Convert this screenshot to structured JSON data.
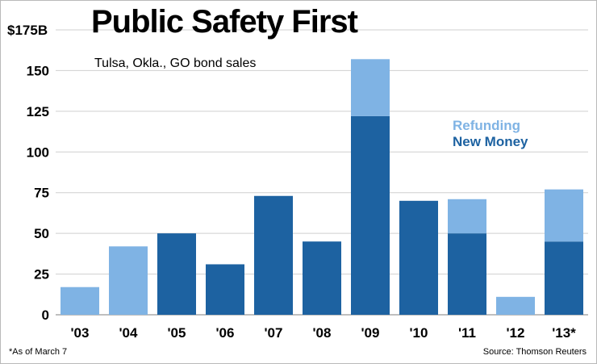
{
  "chart_data": {
    "type": "bar",
    "stacked": true,
    "title": "Public Safety First",
    "subtitle": "Tulsa, Okla., GO bond sales",
    "y_unit_label": "$175B",
    "categories": [
      "'03",
      "'04",
      "'05",
      "'06",
      "'07",
      "'08",
      "'09",
      "'10",
      "'11",
      "'12",
      "'13*"
    ],
    "series": [
      {
        "name": "New Money",
        "color": "#1d62a1",
        "values": [
          0,
          0,
          50,
          31,
          73,
          45,
          122,
          70,
          50,
          0,
          45
        ]
      },
      {
        "name": "Refunding",
        "color": "#7fb3e4",
        "values": [
          17,
          42,
          0,
          0,
          0,
          0,
          35,
          0,
          21,
          11,
          32
        ]
      }
    ],
    "yticks": [
      0,
      25,
      50,
      75,
      100,
      125,
      150
    ],
    "ylim": [
      0,
      175
    ],
    "grid": true,
    "legend_position": "right",
    "footnote": "*As of March 7",
    "source": "Source: Thomson Reuters"
  }
}
